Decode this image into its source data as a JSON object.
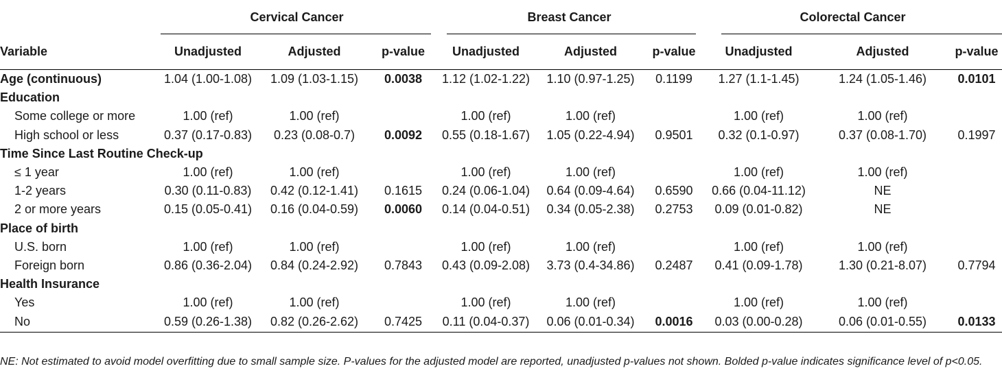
{
  "groups": [
    "Cervical Cancer",
    "Breast Cancer",
    "Colorectal Cancer"
  ],
  "subheaders": {
    "variable": "Variable",
    "unadjusted": "Unadjusted",
    "adjusted": "Adjusted",
    "pvalue": "p-value"
  },
  "rows": [
    {
      "label": "Age (continuous)",
      "bold": true,
      "cu": "1.04 (1.00-1.08)",
      "ca": "1.09 (1.03-1.15)",
      "cp": "0.0038",
      "bu": "1.12 (1.02-1.22)",
      "ba": "1.10 (0.97-1.25)",
      "bp": "0.1199",
      "ou": "1.27 (1.1-1.45)",
      "oa": "1.24 (1.05-1.46)",
      "op": "0.0101"
    },
    {
      "label": "Education",
      "bold": true,
      "cu": "",
      "ca": "",
      "cp": "",
      "bu": "",
      "ba": "",
      "bp": "",
      "ou": "",
      "oa": "",
      "op": ""
    },
    {
      "label": "Some college or more",
      "bold": false,
      "cu": "1.00 (ref)",
      "ca": "1.00 (ref)",
      "cp": "",
      "bu": "1.00 (ref)",
      "ba": "1.00 (ref)",
      "bp": "",
      "ou": "1.00 (ref)",
      "oa": "1.00 (ref)",
      "op": ""
    },
    {
      "label": "High school or less",
      "bold": false,
      "cu": "0.37 (0.17-0.83)",
      "ca": "0.23 (0.08-0.7)",
      "cp": "0.0092",
      "bu": "0.55 (0.18-1.67)",
      "ba": "1.05 (0.22-4.94)",
      "bp": "0.9501",
      "ou": "0.32 (0.1-0.97)",
      "oa": "0.37 (0.08-1.70)",
      "op": "0.1997"
    },
    {
      "label": "Time Since Last Routine Check-up",
      "bold": true,
      "cu": "",
      "ca": "",
      "cp": "",
      "bu": "",
      "ba": "",
      "bp": "",
      "ou": "",
      "oa": "",
      "op": ""
    },
    {
      "label": "≤ 1 year",
      "bold": false,
      "cu": "1.00 (ref)",
      "ca": "1.00 (ref)",
      "cp": "",
      "bu": "1.00 (ref)",
      "ba": "1.00 (ref)",
      "bp": "",
      "ou": "1.00 (ref)",
      "oa": "1.00 (ref)",
      "op": ""
    },
    {
      "label": "1-2 years",
      "bold": false,
      "cu": "0.30 (0.11-0.83)",
      "ca": "0.42 (0.12-1.41)",
      "cp": "0.1615",
      "bu": "0.24 (0.06-1.04)",
      "ba": "0.64 (0.09-4.64)",
      "bp": "0.6590",
      "ou": "0.66 (0.04-11.12)",
      "oa": "NE",
      "op": ""
    },
    {
      "label": "2 or more years",
      "bold": false,
      "cu": "0.15 (0.05-0.41)",
      "ca": "0.16 (0.04-0.59)",
      "cp": "0.0060",
      "bu": "0.14 (0.04-0.51)",
      "ba": "0.34 (0.05-2.38)",
      "bp": "0.2753",
      "ou": "0.09 (0.01-0.82)",
      "oa": "NE",
      "op": ""
    },
    {
      "label": "Place of birth",
      "bold": true,
      "cu": "",
      "ca": "",
      "cp": "",
      "bu": "",
      "ba": "",
      "bp": "",
      "ou": "",
      "oa": "",
      "op": ""
    },
    {
      "label": "U.S. born",
      "bold": false,
      "cu": "1.00 (ref)",
      "ca": "1.00 (ref)",
      "cp": "",
      "bu": "1.00 (ref)",
      "ba": "1.00 (ref)",
      "bp": "",
      "ou": "1.00 (ref)",
      "oa": "1.00 (ref)",
      "op": ""
    },
    {
      "label": "Foreign born",
      "bold": false,
      "cu": "0.86 (0.36-2.04)",
      "ca": "0.84 (0.24-2.92)",
      "cp": "0.7843",
      "bu": "0.43 (0.09-2.08)",
      "ba": "3.73 (0.4-34.86)",
      "bp": "0.2487",
      "ou": "0.41 (0.09-1.78)",
      "oa": "1.30 (0.21-8.07)",
      "op": "0.7794"
    },
    {
      "label": "Health Insurance",
      "bold": true,
      "cu": "",
      "ca": "",
      "cp": "",
      "bu": "",
      "ba": "",
      "bp": "",
      "ou": "",
      "oa": "",
      "op": ""
    },
    {
      "label": "Yes",
      "bold": false,
      "cu": "1.00 (ref)",
      "ca": "1.00 (ref)",
      "cp": "",
      "bu": "1.00 (ref)",
      "ba": "1.00 (ref)",
      "bp": "",
      "ou": "1.00 (ref)",
      "oa": "1.00 (ref)",
      "op": ""
    },
    {
      "label": "No",
      "bold": false,
      "cu": "0.59 (0.26-1.38)",
      "ca": "0.82 (0.26-2.62)",
      "cp": "0.7425",
      "bu": "0.11 (0.04-0.37)",
      "ba": "0.06 (0.01-0.34)",
      "bp": "0.0016",
      "ou": "0.03 (0.00-0.28)",
      "oa": "0.06 (0.01-0.55)",
      "op": "0.0133"
    }
  ],
  "significant_pvalues": [
    "0.0038",
    "0.0101",
    "0.0092",
    "0.0060",
    "0.0016",
    "0.0133"
  ],
  "footnote": "NE: Not estimated to avoid model overfitting due to small sample size. P-values for the adjusted model are reported, unadjusted p-values not shown. Bolded p-value indicates significance level of p<0.05."
}
